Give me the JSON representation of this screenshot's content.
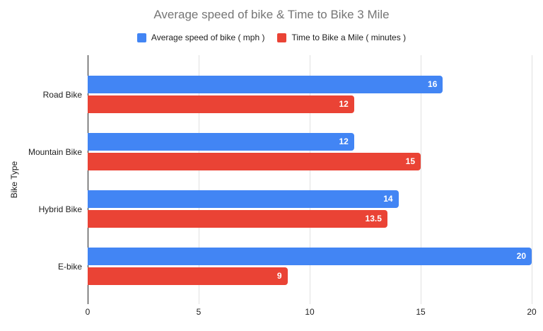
{
  "chart_data": {
    "type": "bar",
    "orientation": "horizontal",
    "title": "Average speed of bike & Time to Bike 3 Mile",
    "title_color": "#757575",
    "categories": [
      "Road Bike",
      "Mountain Bike",
      "Hybrid Bike",
      "E-bike"
    ],
    "series": [
      {
        "name": "Average speed of bike ( mph )",
        "color": "#4285f4",
        "values": [
          16,
          12,
          14,
          20
        ]
      },
      {
        "name": "Time to Bike a Mile ( minutes )",
        "color": "#ea4335",
        "values": [
          12,
          15,
          13.5,
          9
        ]
      }
    ],
    "xlabel": "",
    "ylabel": "Bike Type",
    "xlim": [
      0,
      20
    ],
    "xticks": [
      0,
      5,
      10,
      15,
      20
    ],
    "grid": true,
    "legend_position": "top",
    "data_labels_inside_bar": true,
    "data_label_color": "#ffffff",
    "axis_line_color": "#212121",
    "gridline_color": "#e0e0e0",
    "text_color": "#212121",
    "background_color": "#ffffff"
  }
}
